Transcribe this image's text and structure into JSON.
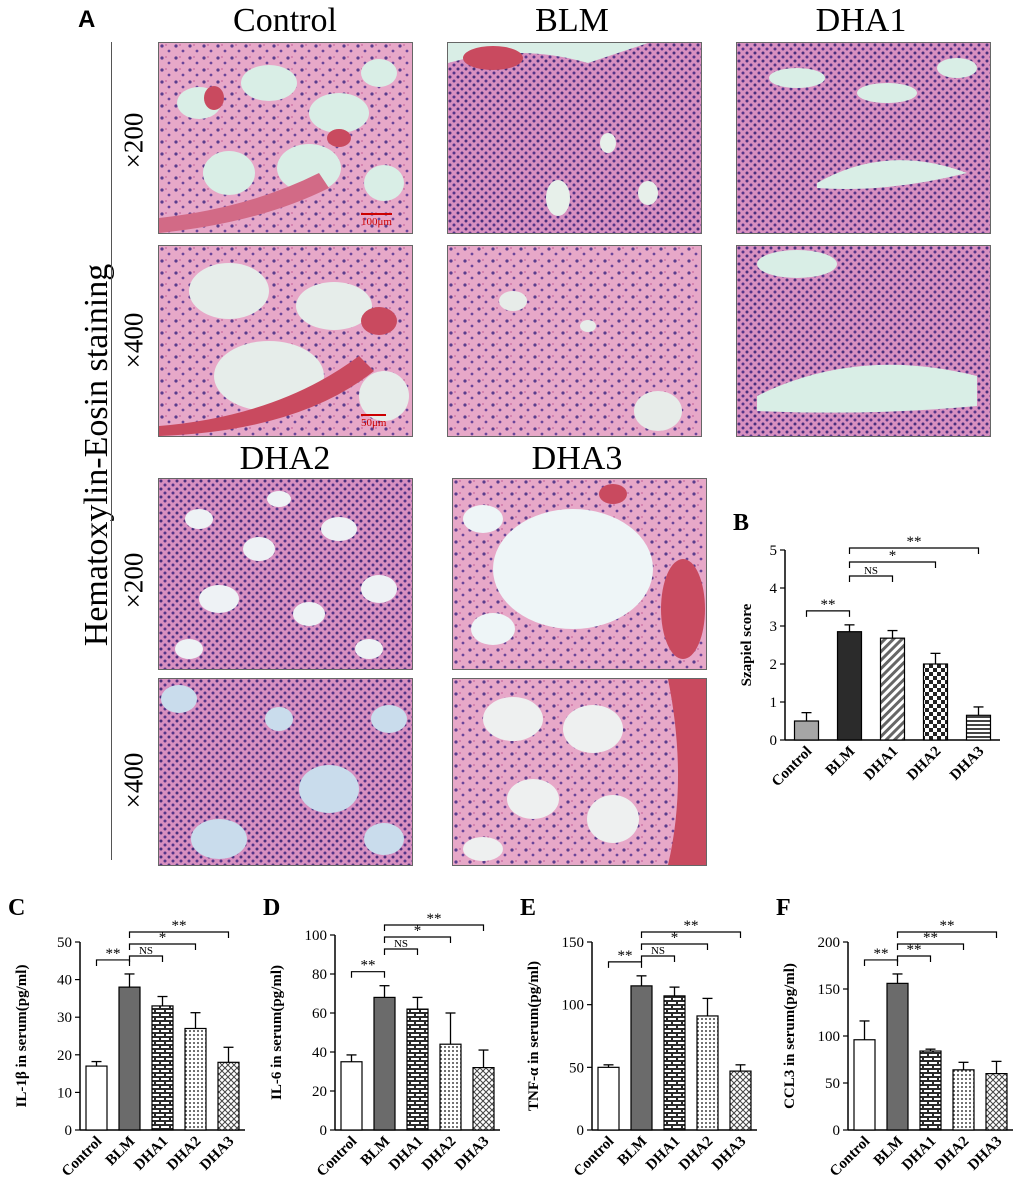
{
  "panelA": {
    "letter": "A",
    "side_title": "Hematoxylin-Eosin staining",
    "columns_top": [
      "Control",
      "BLM",
      "DHA1"
    ],
    "columns_bottom": [
      "DHA2",
      "DHA3"
    ],
    "magnifications": [
      "×200",
      "×400",
      "×200",
      "×400"
    ],
    "scale_bars": [
      "100μm",
      "50μm"
    ]
  },
  "colors": {
    "stain_pink": "#e6a9c9",
    "nuclei_purple": "#5a3a8a",
    "lumen": "#d8ece6",
    "rbc": "#d7556a"
  },
  "chart_data": [
    {
      "letter": "B",
      "type": "bar",
      "categories": [
        "Control",
        "BLM",
        "DHA1",
        "DHA2",
        "DHA3"
      ],
      "values": [
        0.5,
        2.85,
        2.68,
        2.0,
        0.65
      ],
      "errors": [
        0.22,
        0.18,
        0.2,
        0.28,
        0.22
      ],
      "ylabel": "Szapiel score",
      "ylim": [
        0,
        5
      ],
      "yticks": [
        "0",
        "1",
        "2",
        "3",
        "4",
        "5"
      ],
      "fills": [
        "#a6a6a6",
        "#2b2b2b",
        "diag",
        "check",
        "hstripe"
      ],
      "comparisons": [
        {
          "from": 0,
          "to": 1,
          "label": "**"
        },
        {
          "from": 1,
          "to": 2,
          "label": "NS"
        },
        {
          "from": 1,
          "to": 3,
          "label": "*"
        },
        {
          "from": 1,
          "to": 4,
          "label": "**"
        }
      ]
    },
    {
      "letter": "C",
      "type": "bar",
      "categories": [
        "Control",
        "BLM",
        "DHA1",
        "DHA2",
        "DHA3"
      ],
      "values": [
        17,
        38,
        33,
        27,
        18
      ],
      "errors": [
        1.2,
        3.5,
        2.5,
        4.2,
        4.0
      ],
      "ylabel": "IL-1β in serum(pg/ml)",
      "ylim": [
        0,
        50
      ],
      "yticks": [
        "0",
        "10",
        "20",
        "30",
        "40",
        "50"
      ],
      "fills": [
        "#ffffff",
        "#6b6b6b",
        "brick",
        "dots",
        "cross"
      ],
      "comparisons": [
        {
          "from": 0,
          "to": 1,
          "label": "**"
        },
        {
          "from": 1,
          "to": 2,
          "label": "NS"
        },
        {
          "from": 1,
          "to": 3,
          "label": "*"
        },
        {
          "from": 1,
          "to": 4,
          "label": "**"
        }
      ]
    },
    {
      "letter": "D",
      "type": "bar",
      "categories": [
        "Control",
        "BLM",
        "DHA1",
        "DHA2",
        "DHA3"
      ],
      "values": [
        35,
        68,
        62,
        44,
        32
      ],
      "errors": [
        3.5,
        6.0,
        6.0,
        16.0,
        9.0
      ],
      "ylabel": "IL-6 in serum(pg/ml)",
      "ylim": [
        0,
        100
      ],
      "yticks": [
        "0",
        "20",
        "40",
        "60",
        "80",
        "100"
      ],
      "fills": [
        "#ffffff",
        "#6b6b6b",
        "brick",
        "dots",
        "cross"
      ],
      "comparisons": [
        {
          "from": 0,
          "to": 1,
          "label": "**"
        },
        {
          "from": 1,
          "to": 2,
          "label": "NS"
        },
        {
          "from": 1,
          "to": 3,
          "label": "*"
        },
        {
          "from": 1,
          "to": 4,
          "label": "**"
        }
      ]
    },
    {
      "letter": "E",
      "type": "bar",
      "categories": [
        "Control",
        "BLM",
        "DHA1",
        "DHA2",
        "DHA3"
      ],
      "values": [
        50,
        115,
        107,
        91,
        47
      ],
      "errors": [
        2.0,
        8.0,
        7.0,
        14.0,
        5.0
      ],
      "ylabel": "TNF-α in serum(pg/ml)",
      "ylim": [
        0,
        150
      ],
      "yticks": [
        "0",
        "50",
        "100",
        "150"
      ],
      "fills": [
        "#ffffff",
        "#6b6b6b",
        "brick",
        "dots",
        "cross"
      ],
      "comparisons": [
        {
          "from": 0,
          "to": 1,
          "label": "**"
        },
        {
          "from": 1,
          "to": 2,
          "label": "NS"
        },
        {
          "from": 1,
          "to": 3,
          "label": "*"
        },
        {
          "from": 1,
          "to": 4,
          "label": "**"
        }
      ]
    },
    {
      "letter": "F",
      "type": "bar",
      "categories": [
        "Control",
        "BLM",
        "DHA1",
        "DHA2",
        "DHA3"
      ],
      "values": [
        96,
        156,
        84,
        64,
        60
      ],
      "errors": [
        20.0,
        10.0,
        2.0,
        8.0,
        13.0
      ],
      "ylabel": "CCL3 in serum(pg/ml)",
      "ylim": [
        0,
        200
      ],
      "yticks": [
        "0",
        "50",
        "100",
        "150",
        "200"
      ],
      "fills": [
        "#ffffff",
        "#6b6b6b",
        "brick",
        "dots",
        "cross"
      ],
      "comparisons": [
        {
          "from": 0,
          "to": 1,
          "label": "**"
        },
        {
          "from": 1,
          "to": 2,
          "label": "**"
        },
        {
          "from": 1,
          "to": 3,
          "label": "**"
        },
        {
          "from": 1,
          "to": 4,
          "label": "**"
        }
      ]
    }
  ]
}
